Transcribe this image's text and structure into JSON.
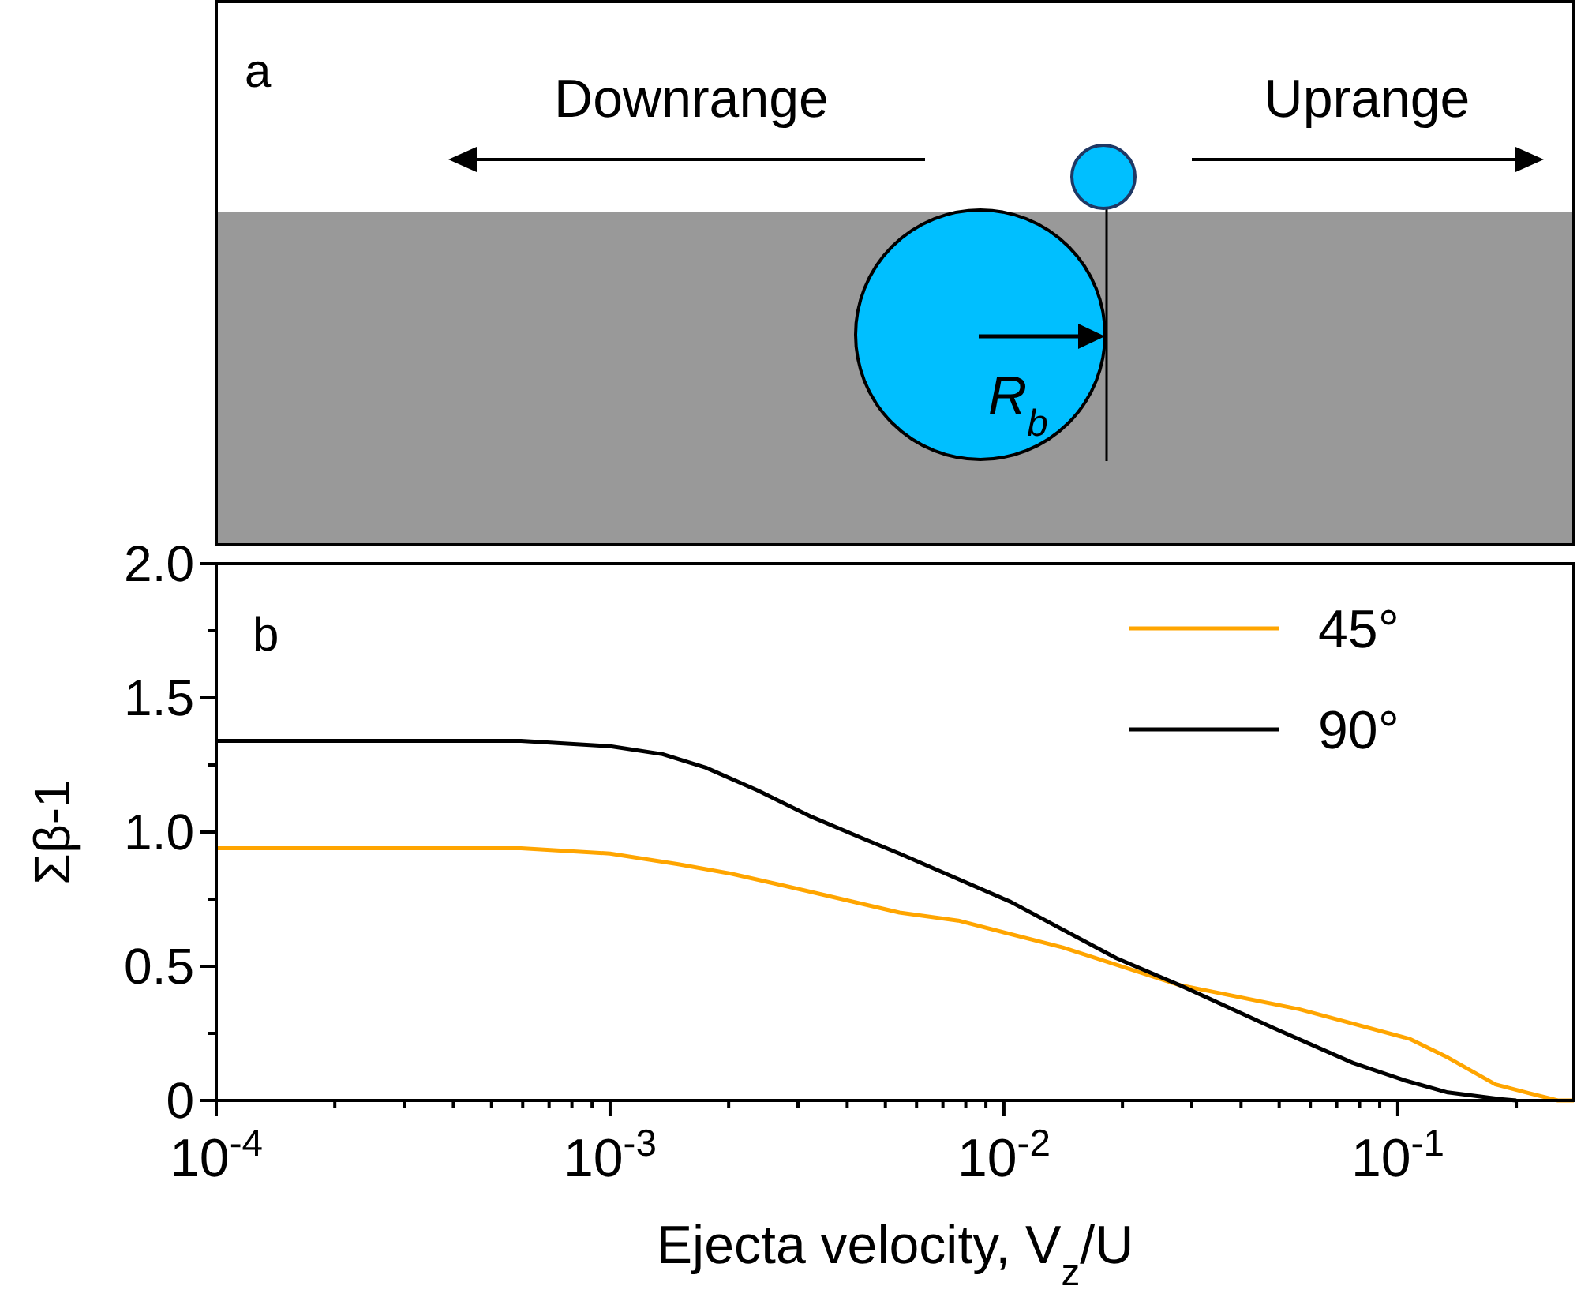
{
  "chart_data": [
    {
      "type": "other",
      "title": "a",
      "annotations": [
        "Downrange",
        "Uprange",
        "R$_{b}$"
      ]
    },
    {
      "type": "line",
      "title": "b",
      "xlabel": "Ejecta velocity, V$_{z}$/U",
      "ylabel": "Σβ-1",
      "log": "x",
      "legend": "top right",
      "grid": false,
      "marker": "none",
      "line_style": "solid",
      "xlim": [
        0.0001,
        0.28
      ],
      "xticks": [
        {
          "value": 0.0001,
          "label": "10$^{-4}$"
        },
        {
          "value": 0.0002,
          "label": null
        },
        {
          "value": 0.0003,
          "label": null
        },
        {
          "value": 0.0004,
          "label": null
        },
        {
          "value": 0.0005,
          "label": null
        },
        {
          "value": 0.0006,
          "label": null
        },
        {
          "value": 0.0007,
          "label": null
        },
        {
          "value": 0.0008,
          "label": null
        },
        {
          "value": 0.0009,
          "label": null
        },
        {
          "value": 0.001,
          "label": "10$^{-3}$"
        },
        {
          "value": 0.002,
          "label": null
        },
        {
          "value": 0.003,
          "label": null
        },
        {
          "value": 0.004,
          "label": null
        },
        {
          "value": 0.005,
          "label": null
        },
        {
          "value": 0.006,
          "label": null
        },
        {
          "value": 0.007,
          "label": null
        },
        {
          "value": 0.008,
          "label": null
        },
        {
          "value": 0.009,
          "label": null
        },
        {
          "value": 0.01,
          "label": "10$^{-2}$"
        },
        {
          "value": 0.02,
          "label": null
        },
        {
          "value": 0.03,
          "label": null
        },
        {
          "value": 0.04,
          "label": null
        },
        {
          "value": 0.05,
          "label": null
        },
        {
          "value": 0.06,
          "label": null
        },
        {
          "value": 0.07,
          "label": null
        },
        {
          "value": 0.08,
          "label": null
        },
        {
          "value": 0.09,
          "label": null
        },
        {
          "value": 0.1,
          "label": "10$^{-1}$"
        },
        {
          "value": 0.2,
          "label": null
        }
      ],
      "ylim": [
        0,
        2
      ],
      "yticks": [
        {
          "value": 0,
          "label": "0"
        },
        {
          "value": 0.25,
          "label": null
        },
        {
          "value": 0.5,
          "label": "0.5"
        },
        {
          "value": 0.75,
          "label": null
        },
        {
          "value": 1,
          "label": "1.0"
        },
        {
          "value": 1.25,
          "label": null
        },
        {
          "value": 1.5,
          "label": "1.5"
        },
        {
          "value": 1.75,
          "label": null
        },
        {
          "value": 2,
          "label": "2.0"
        }
      ],
      "series": [
        {
          "name": "45°",
          "color": "#ffa500",
          "x": [
            0.0001,
            0.000594,
            0.001,
            0.00149,
            0.00203,
            0.00277,
            0.00543,
            0.00766,
            0.0141,
            0.0279,
            0.0562,
            0.107,
            0.134,
            0.177,
            0.212,
            0.255,
            0.28
          ],
          "values": [
            0.94,
            0.94,
            0.92,
            0.88,
            0.845,
            0.8,
            0.7,
            0.67,
            0.57,
            0.43,
            0.34,
            0.23,
            0.16,
            0.06,
            0.03,
            0,
            0
          ]
        },
        {
          "name": "90°",
          "color": "#000000",
          "x": [
            0.0001,
            0.000594,
            0.001,
            0.00136,
            0.00175,
            0.00237,
            0.00321,
            0.0044,
            0.00543,
            0.0104,
            0.0193,
            0.0279,
            0.0484,
            0.0769,
            0.104,
            0.134,
            0.182,
            0.2
          ],
          "values": [
            1.34,
            1.34,
            1.32,
            1.29,
            1.24,
            1.155,
            1.06,
            0.975,
            0.92,
            0.74,
            0.53,
            0.43,
            0.27,
            0.14,
            0.075,
            0.03,
            0.005,
            0
          ]
        }
      ]
    }
  ]
}
